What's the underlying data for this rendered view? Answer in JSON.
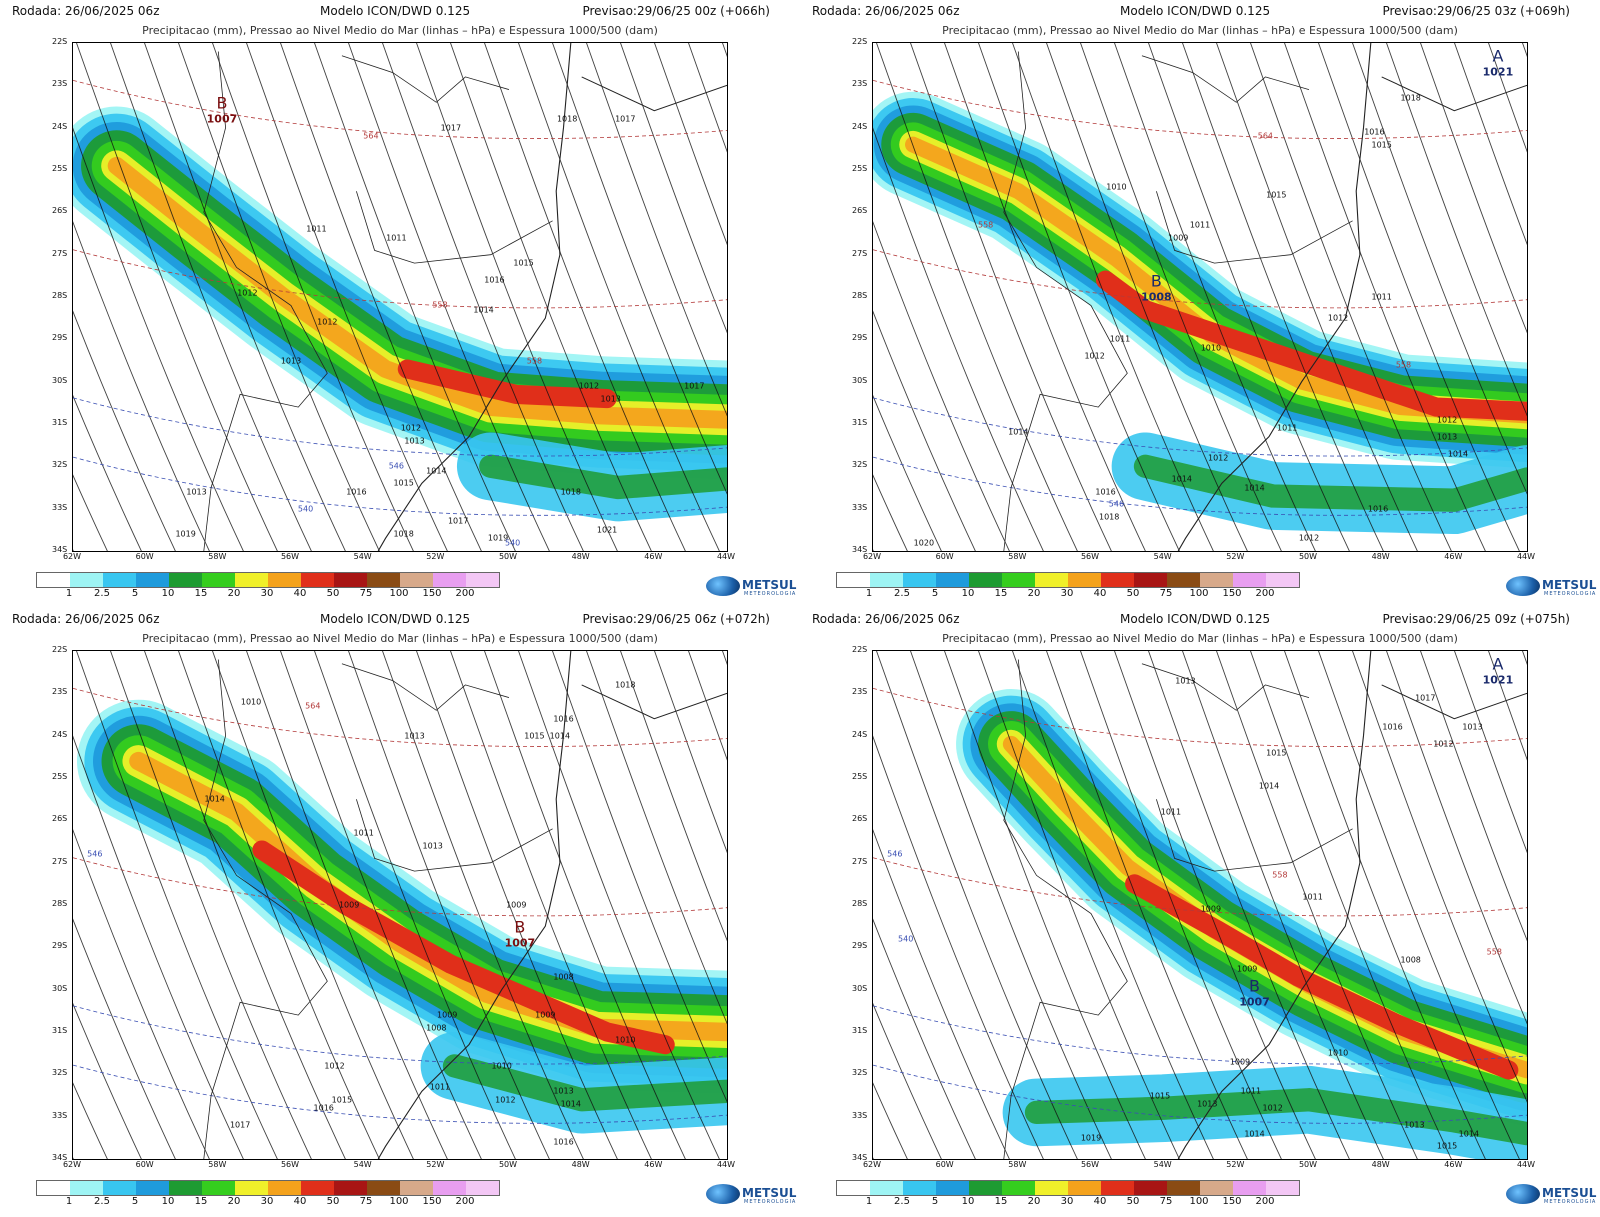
{
  "panels": [
    {
      "run": "Rodada: 26/06/2025 06z",
      "model": "Modelo ICON/DWD 0.125",
      "forecast": "Previsao:29/06/25 00z (+066h)",
      "subtitle": "Precipitacao (mm), Pressao ao Nivel Medio do Mar (linhas – hPa) e Espessura 1000/500 (dam)",
      "systems": [
        {
          "letter": "B",
          "value": "1007",
          "lon": -57.9,
          "lat": -23.6,
          "color": "#7a0f10"
        }
      ],
      "isobar_labels": [
        {
          "text": "1011",
          "lon": -55.3,
          "lat": -26.4
        },
        {
          "text": "1012",
          "lon": -57.2,
          "lat": -27.9
        },
        {
          "text": "1012",
          "lon": -55.0,
          "lat": -28.6
        },
        {
          "text": "1013",
          "lon": -56.0,
          "lat": -29.5
        },
        {
          "text": "1011",
          "lon": -53.1,
          "lat": -26.6
        },
        {
          "text": "1016",
          "lon": -50.4,
          "lat": -27.6
        },
        {
          "text": "1014",
          "lon": -50.7,
          "lat": -28.3
        },
        {
          "text": "1015",
          "lon": -49.6,
          "lat": -27.2
        },
        {
          "text": "1017",
          "lon": -51.6,
          "lat": -24.0
        },
        {
          "text": "1018",
          "lon": -48.4,
          "lat": -23.8
        },
        {
          "text": "1017",
          "lon": -46.8,
          "lat": -23.8
        },
        {
          "text": "1012",
          "lon": -52.7,
          "lat": -31.1
        },
        {
          "text": "1013",
          "lon": -52.6,
          "lat": -31.4
        },
        {
          "text": "1014",
          "lon": -52.0,
          "lat": -32.1
        },
        {
          "text": "1015",
          "lon": -52.9,
          "lat": -32.4
        },
        {
          "text": "1016",
          "lon": -54.2,
          "lat": -32.6
        },
        {
          "text": "1013",
          "lon": -58.6,
          "lat": -32.6
        },
        {
          "text": "1017",
          "lon": -51.4,
          "lat": -33.3
        },
        {
          "text": "1018",
          "lon": -52.9,
          "lat": -33.6
        },
        {
          "text": "1019",
          "lon": -50.3,
          "lat": -33.7
        },
        {
          "text": "1021",
          "lon": -47.3,
          "lat": -33.5
        },
        {
          "text": "1019",
          "lon": -58.9,
          "lat": -33.6
        },
        {
          "text": "1013",
          "lon": -47.2,
          "lat": -30.4
        },
        {
          "text": "1012",
          "lon": -47.8,
          "lat": -30.1
        },
        {
          "text": "1017",
          "lon": -44.9,
          "lat": -30.1
        },
        {
          "text": "1018",
          "lon": -48.3,
          "lat": -32.6
        }
      ],
      "thickness_labels": [
        {
          "text": "564",
          "lon": -53.8,
          "lat": -24.2,
          "color": "#b33a3a"
        },
        {
          "text": "558",
          "lon": -51.9,
          "lat": -28.2,
          "color": "#b33a3a"
        },
        {
          "text": "558",
          "lon": -49.3,
          "lat": -29.5,
          "color": "#b33a3a"
        },
        {
          "text": "546",
          "lon": -53.1,
          "lat": -32.0,
          "color": "#3a4fb3"
        },
        {
          "text": "540",
          "lon": -55.6,
          "lat": -33.0,
          "color": "#3a4fb3"
        },
        {
          "text": "540",
          "lon": -49.9,
          "lat": -33.8,
          "color": "#3a4fb3"
        }
      ],
      "precip_band": {
        "path": [
          [
            -60.8,
            -24.9
          ],
          [
            -58.6,
            -26.4
          ],
          [
            -56.2,
            -28.0
          ],
          [
            -53.4,
            -29.7
          ],
          [
            -50.5,
            -30.6
          ],
          [
            -47.5,
            -30.8
          ],
          [
            -44,
            -30.9
          ]
        ],
        "width_deg": 2.8,
        "core": [
          [
            -52.8,
            -29.7
          ],
          [
            -49.8,
            -30.3
          ],
          [
            -47.3,
            -30.4
          ]
        ],
        "core_level": "40",
        "south_lobe": [
          [
            -50.5,
            -32.0
          ],
          [
            -47,
            -32.5
          ],
          [
            -44,
            -32.3
          ]
        ]
      }
    },
    {
      "run": "Rodada: 26/06/2025 06z",
      "model": "Modelo ICON/DWD 0.125",
      "forecast": "Previsao:29/06/25 03z (+069h)",
      "subtitle": "Precipitacao (mm), Pressao ao Nivel Medio do Mar (linhas – hPa) e Espessura 1000/500 (dam)",
      "systems": [
        {
          "letter": "B",
          "value": "1008",
          "lon": -54.2,
          "lat": -27.8,
          "color": "#1a2a6b"
        },
        {
          "letter": "A",
          "value": "1021",
          "lon": -44.8,
          "lat": -22.5,
          "color": "#1a2a6b"
        }
      ],
      "isobar_labels": [
        {
          "text": "1010",
          "lon": -55.3,
          "lat": -25.4
        },
        {
          "text": "1011",
          "lon": -53.0,
          "lat": -26.3
        },
        {
          "text": "1009",
          "lon": -53.6,
          "lat": -26.6
        },
        {
          "text": "1015",
          "lon": -50.9,
          "lat": -25.6
        },
        {
          "text": "1016",
          "lon": -48.2,
          "lat": -24.1
        },
        {
          "text": "1015",
          "lon": -48.0,
          "lat": -24.4
        },
        {
          "text": "1018",
          "lon": -47.2,
          "lat": -23.3
        },
        {
          "text": "1011",
          "lon": -55.2,
          "lat": -29.0
        },
        {
          "text": "1012",
          "lon": -55.9,
          "lat": -29.4
        },
        {
          "text": "1010",
          "lon": -52.7,
          "lat": -29.2
        },
        {
          "text": "1011",
          "lon": -48.0,
          "lat": -28.0
        },
        {
          "text": "1012",
          "lon": -49.2,
          "lat": -28.5
        },
        {
          "text": "1014",
          "lon": -58.0,
          "lat": -31.2
        },
        {
          "text": "1012",
          "lon": -52.5,
          "lat": -31.8
        },
        {
          "text": "1014",
          "lon": -53.5,
          "lat": -32.3
        },
        {
          "text": "1016",
          "lon": -55.6,
          "lat": -32.6
        },
        {
          "text": "1018",
          "lon": -55.5,
          "lat": -33.2
        },
        {
          "text": "1014",
          "lon": -51.5,
          "lat": -32.5
        },
        {
          "text": "1011",
          "lon": -50.6,
          "lat": -31.1
        },
        {
          "text": "1012",
          "lon": -46.2,
          "lat": -30.9
        },
        {
          "text": "1013",
          "lon": -46.2,
          "lat": -31.3
        },
        {
          "text": "1014",
          "lon": -45.9,
          "lat": -31.7
        },
        {
          "text": "1016",
          "lon": -48.1,
          "lat": -33.0
        },
        {
          "text": "1012",
          "lon": -50.0,
          "lat": -33.7
        },
        {
          "text": "1020",
          "lon": -60.6,
          "lat": -33.8
        }
      ],
      "thickness_labels": [
        {
          "text": "564",
          "lon": -51.2,
          "lat": -24.2,
          "color": "#b33a3a"
        },
        {
          "text": "558",
          "lon": -58.9,
          "lat": -26.3,
          "color": "#b33a3a"
        },
        {
          "text": "558",
          "lon": -47.4,
          "lat": -29.6,
          "color": "#b33a3a"
        },
        {
          "text": "546",
          "lon": -55.3,
          "lat": -32.9,
          "color": "#3a4fb3"
        }
      ],
      "precip_band": {
        "path": [
          [
            -60.9,
            -24.4
          ],
          [
            -58,
            -25.5
          ],
          [
            -55.3,
            -27.1
          ],
          [
            -52.7,
            -28.9
          ],
          [
            -50.2,
            -30.0
          ],
          [
            -47.5,
            -30.6
          ],
          [
            -44,
            -30.8
          ]
        ],
        "width_deg": 2.5,
        "core": [
          [
            -55.6,
            -27.6
          ],
          [
            -54.5,
            -28.3
          ],
          [
            -46.5,
            -30.6
          ],
          [
            -44,
            -30.7
          ]
        ],
        "core_level": "40",
        "south_lobe": [
          [
            -54.5,
            -32.0
          ],
          [
            -51,
            -32.7
          ],
          [
            -46,
            -32.8
          ],
          [
            -44,
            -32.3
          ]
        ]
      }
    },
    {
      "run": "Rodada: 26/06/2025 06z",
      "model": "Modelo ICON/DWD 0.125",
      "forecast": "Previsao:29/06/25 06z (+072h)",
      "subtitle": "Precipitacao (mm), Pressao ao Nivel Medio do Mar (linhas – hPa) e Espessura 1000/500 (dam)",
      "systems": [
        {
          "letter": "B",
          "value": "1007",
          "lon": -49.7,
          "lat": -28.7,
          "color": "#7a0f10"
        }
      ],
      "isobar_labels": [
        {
          "text": "1010",
          "lon": -57.1,
          "lat": -23.2
        },
        {
          "text": "1013",
          "lon": -52.6,
          "lat": -24.0
        },
        {
          "text": "1014",
          "lon": -58.1,
          "lat": -25.5
        },
        {
          "text": "1011",
          "lon": -54.0,
          "lat": -26.3
        },
        {
          "text": "1013",
          "lon": -52.1,
          "lat": -26.6
        },
        {
          "text": "1016",
          "lon": -48.5,
          "lat": -23.6
        },
        {
          "text": "1015",
          "lon": -49.3,
          "lat": -24.0
        },
        {
          "text": "1014",
          "lon": -48.6,
          "lat": -24.0
        },
        {
          "text": "1018",
          "lon": -46.8,
          "lat": -22.8
        },
        {
          "text": "1009",
          "lon": -54.4,
          "lat": -28.0
        },
        {
          "text": "1009",
          "lon": -49.8,
          "lat": -28.0
        },
        {
          "text": "1008",
          "lon": -48.5,
          "lat": -29.7
        },
        {
          "text": "1009",
          "lon": -51.7,
          "lat": -30.6
        },
        {
          "text": "1010",
          "lon": -50.2,
          "lat": -31.8
        },
        {
          "text": "1009",
          "lon": -49.0,
          "lat": -30.6
        },
        {
          "text": "1011",
          "lon": -51.9,
          "lat": -32.3
        },
        {
          "text": "1012",
          "lon": -50.1,
          "lat": -32.6
        },
        {
          "text": "1013",
          "lon": -48.5,
          "lat": -32.4
        },
        {
          "text": "1014",
          "lon": -48.3,
          "lat": -32.7
        },
        {
          "text": "1012",
          "lon": -54.8,
          "lat": -31.8
        },
        {
          "text": "1015",
          "lon": -54.6,
          "lat": -32.6
        },
        {
          "text": "1016",
          "lon": -55.1,
          "lat": -32.8
        },
        {
          "text": "1017",
          "lon": -57.4,
          "lat": -33.2
        },
        {
          "text": "1016",
          "lon": -48.5,
          "lat": -33.6
        },
        {
          "text": "1010",
          "lon": -46.8,
          "lat": -31.2
        },
        {
          "text": "1008",
          "lon": -52.0,
          "lat": -30.9
        }
      ],
      "thickness_labels": [
        {
          "text": "564",
          "lon": -55.4,
          "lat": -23.3,
          "color": "#b33a3a"
        },
        {
          "text": "546",
          "lon": -61.4,
          "lat": -26.8,
          "color": "#3a4fb3"
        }
      ],
      "precip_band": {
        "path": [
          [
            -60.2,
            -24.6
          ],
          [
            -57.5,
            -25.8
          ],
          [
            -55.3,
            -27.5
          ],
          [
            -53.0,
            -28.9
          ],
          [
            -50.6,
            -30.1
          ],
          [
            -47.6,
            -30.9
          ],
          [
            -44,
            -31.0
          ]
        ],
        "width_deg": 2.9,
        "core": [
          [
            -56.8,
            -26.7
          ],
          [
            -54.5,
            -28.0
          ],
          [
            -51.6,
            -29.4
          ],
          [
            -47.3,
            -31.0
          ],
          [
            -45.7,
            -31.3
          ]
        ],
        "core_level": "40",
        "south_lobe": [
          [
            -51.5,
            -31.8
          ],
          [
            -48,
            -32.6
          ],
          [
            -44,
            -32.4
          ]
        ]
      }
    },
    {
      "run": "Rodada: 26/06/2025 06z",
      "model": "Modelo ICON/DWD 0.125",
      "forecast": "Previsao:29/06/25 09z (+075h)",
      "subtitle": "Precipitacao (mm), Pressao ao Nivel Medio do Mar (linhas – hPa) e Espessura 1000/500 (dam)",
      "systems": [
        {
          "letter": "B",
          "value": "1007",
          "lon": -51.5,
          "lat": -30.1,
          "color": "#1a2a6b"
        },
        {
          "letter": "A",
          "value": "1021",
          "lon": -44.8,
          "lat": -22.5,
          "color": "#1a2a6b"
        }
      ],
      "isobar_labels": [
        {
          "text": "1013",
          "lon": -53.4,
          "lat": -22.7
        },
        {
          "text": "1017",
          "lon": -46.8,
          "lat": -23.1
        },
        {
          "text": "1016",
          "lon": -47.7,
          "lat": -23.8
        },
        {
          "text": "1013",
          "lon": -45.5,
          "lat": -23.8
        },
        {
          "text": "1012",
          "lon": -46.3,
          "lat": -24.2
        },
        {
          "text": "1015",
          "lon": -50.9,
          "lat": -24.4
        },
        {
          "text": "1014",
          "lon": -51.1,
          "lat": -25.2
        },
        {
          "text": "1011",
          "lon": -53.8,
          "lat": -25.8
        },
        {
          "text": "1011",
          "lon": -49.9,
          "lat": -27.8
        },
        {
          "text": "1009",
          "lon": -52.7,
          "lat": -28.1
        },
        {
          "text": "1008",
          "lon": -47.2,
          "lat": -29.3
        },
        {
          "text": "1009",
          "lon": -51.7,
          "lat": -29.5
        },
        {
          "text": "1010",
          "lon": -49.2,
          "lat": -31.5
        },
        {
          "text": "1009",
          "lon": -51.9,
          "lat": -31.7
        },
        {
          "text": "1011",
          "lon": -51.6,
          "lat": -32.4
        },
        {
          "text": "1012",
          "lon": -51.0,
          "lat": -32.8
        },
        {
          "text": "1013",
          "lon": -52.8,
          "lat": -32.7
        },
        {
          "text": "1015",
          "lon": -54.1,
          "lat": -32.5
        },
        {
          "text": "1019",
          "lon": -56.0,
          "lat": -33.5
        },
        {
          "text": "1014",
          "lon": -51.5,
          "lat": -33.4
        },
        {
          "text": "1013",
          "lon": -47.1,
          "lat": -33.2
        },
        {
          "text": "1014",
          "lon": -45.6,
          "lat": -33.4
        },
        {
          "text": "1015",
          "lon": -46.2,
          "lat": -33.7
        }
      ],
      "thickness_labels": [
        {
          "text": "546",
          "lon": -61.4,
          "lat": -26.8,
          "color": "#3a4fb3"
        },
        {
          "text": "540",
          "lon": -61.1,
          "lat": -28.8,
          "color": "#3a4fb3"
        },
        {
          "text": "558",
          "lon": -50.8,
          "lat": -27.3,
          "color": "#b33a3a"
        },
        {
          "text": "558",
          "lon": -44.9,
          "lat": -29.1,
          "color": "#b33a3a"
        }
      ],
      "precip_band": {
        "path": [
          [
            -58.2,
            -24.2
          ],
          [
            -56.7,
            -25.6
          ],
          [
            -55.0,
            -27.1
          ],
          [
            -52.6,
            -28.6
          ],
          [
            -50.0,
            -29.9
          ],
          [
            -47.4,
            -31.0
          ],
          [
            -44,
            -31.9
          ]
        ],
        "width_deg": 2.6,
        "core": [
          [
            -54.8,
            -27.5
          ],
          [
            -52.5,
            -28.6
          ],
          [
            -50.3,
            -29.7
          ],
          [
            -47.6,
            -30.8
          ],
          [
            -44.5,
            -31.9
          ]
        ],
        "core_level": "40",
        "south_lobe": [
          [
            -57.5,
            -32.9
          ],
          [
            -54,
            -32.8
          ],
          [
            -50,
            -32.6
          ],
          [
            -46,
            -33.1
          ],
          [
            -44,
            -33.4
          ]
        ]
      }
    }
  ],
  "axes": {
    "lat_ticks": [
      "22S",
      "23S",
      "24S",
      "25S",
      "26S",
      "27S",
      "28S",
      "29S",
      "30S",
      "31S",
      "32S",
      "33S",
      "34S"
    ],
    "lon_ticks": [
      "62W",
      "60W",
      "58W",
      "56W",
      "54W",
      "52W",
      "50W",
      "48W",
      "46W",
      "44W"
    ],
    "lon_range": [
      -62,
      -44
    ],
    "lat_range": [
      -22,
      -34
    ]
  },
  "legend": {
    "labels": [
      "1",
      "2.5",
      "5",
      "10",
      "15",
      "20",
      "30",
      "40",
      "50",
      "75",
      "100",
      "150",
      "200"
    ],
    "colors": [
      "#ffffff",
      "#9ef4f4",
      "#38c6f0",
      "#1f9bdc",
      "#1e9b32",
      "#35cd1e",
      "#f0f02a",
      "#f4a21c",
      "#e02f1a",
      "#a81514",
      "#8a4b14",
      "#d7a98a",
      "#e89ef0",
      "#f3c7f5"
    ]
  },
  "logo": {
    "name": "METSUL",
    "tagline": "METEOROLOGIA",
    "icon": "metsul-globe-icon"
  }
}
